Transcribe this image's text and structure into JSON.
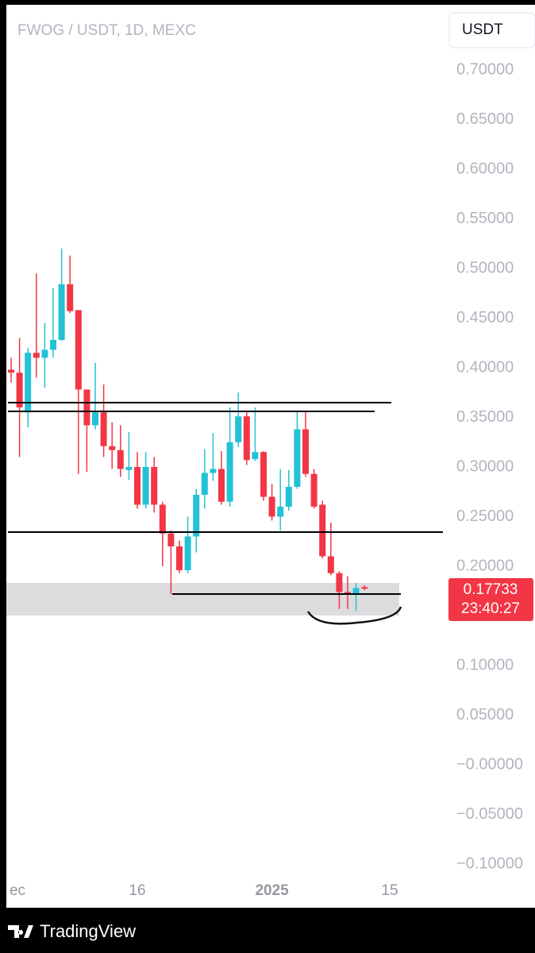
{
  "chart_data": {
    "type": "candlestick",
    "title": "FWOG / USDT, 1D, MEXC",
    "currency": "USDT",
    "categories": [
      "ec",
      null,
      null,
      null,
      null,
      null,
      null,
      null,
      null,
      null,
      null,
      null,
      null,
      null,
      null,
      "16",
      null,
      null,
      null,
      null,
      null,
      null,
      null,
      null,
      null,
      null,
      null,
      null,
      null,
      null,
      null,
      "2025",
      null,
      null,
      null,
      null,
      null,
      null,
      null,
      null,
      null,
      null,
      null,
      null,
      null,
      "15"
    ],
    "open": [
      0.398,
      0.395,
      0.355,
      0.415,
      0.41,
      0.418,
      0.428,
      0.484,
      0.458,
      0.378,
      0.342,
      0.355,
      0.321,
      0.317,
      0.297,
      0.3,
      0.262,
      0.3,
      0.262,
      0.233,
      0.22,
      0.196,
      0.23,
      0.272,
      0.294,
      0.298,
      0.265,
      0.325,
      0.351,
      0.308,
      0.315,
      0.27,
      0.25,
      0.26,
      0.28,
      0.338,
      0.293,
      0.262,
      0.21,
      0.193,
      0.174,
      0.172,
      0.179,
      null,
      null,
      null
    ],
    "high": [
      0.41,
      0.43,
      0.42,
      0.495,
      0.445,
      0.48,
      0.52,
      0.513,
      0.458,
      0.378,
      0.405,
      0.383,
      0.345,
      0.342,
      0.335,
      0.315,
      0.315,
      0.31,
      0.265,
      0.236,
      0.226,
      0.25,
      0.278,
      0.318,
      0.334,
      0.316,
      0.36,
      0.375,
      0.355,
      0.36,
      0.316,
      0.283,
      0.298,
      0.297,
      0.356,
      0.356,
      0.298,
      0.266,
      0.244,
      0.195,
      0.19,
      0.183,
      0.181,
      null,
      null,
      null
    ],
    "low": [
      0.385,
      0.31,
      0.34,
      0.39,
      0.38,
      0.41,
      0.427,
      0.455,
      0.293,
      0.295,
      0.338,
      0.31,
      0.298,
      0.29,
      0.287,
      0.258,
      0.258,
      0.254,
      0.2,
      0.172,
      0.193,
      0.193,
      0.214,
      0.258,
      0.286,
      0.262,
      0.26,
      0.32,
      0.302,
      0.306,
      0.266,
      0.246,
      0.236,
      0.256,
      0.278,
      0.29,
      0.258,
      0.208,
      0.191,
      0.157,
      0.157,
      0.155,
      0.176,
      null,
      null,
      null
    ],
    "close": [
      0.395,
      0.36,
      0.415,
      0.41,
      0.418,
      0.428,
      0.484,
      0.457,
      0.378,
      0.342,
      0.355,
      0.321,
      0.317,
      0.298,
      0.3,
      0.262,
      0.3,
      0.262,
      0.233,
      0.22,
      0.196,
      0.23,
      0.272,
      0.294,
      0.298,
      0.265,
      0.325,
      0.351,
      0.307,
      0.315,
      0.27,
      0.25,
      0.26,
      0.28,
      0.338,
      0.293,
      0.26,
      0.21,
      0.193,
      0.174,
      0.173,
      0.178,
      0.17733,
      null,
      null,
      null
    ],
    "up_color": "#22c1d6",
    "down_color": "#f23645",
    "ylim": [
      -0.116,
      0.7704
    ],
    "yticks": [
      {
        "value": 0.7,
        "label": "0.70000"
      },
      {
        "value": 0.65,
        "label": "0.65000"
      },
      {
        "value": 0.6,
        "label": "0.60000"
      },
      {
        "value": 0.55,
        "label": "0.55000"
      },
      {
        "value": 0.5,
        "label": "0.50000"
      },
      {
        "value": 0.45,
        "label": "0.45000"
      },
      {
        "value": 0.4,
        "label": "0.40000"
      },
      {
        "value": 0.35,
        "label": "0.35000"
      },
      {
        "value": 0.3,
        "label": "0.30000"
      },
      {
        "value": 0.25,
        "label": "0.25000"
      },
      {
        "value": 0.2,
        "label": "0.20000"
      },
      {
        "value": 0.1,
        "label": "0.10000"
      },
      {
        "value": 0.05,
        "label": "0.05000"
      },
      {
        "value": 0,
        "label": "−0.00000"
      },
      {
        "value": -0.05,
        "label": "−0.05000"
      },
      {
        "value": -0.1,
        "label": "−0.10000"
      }
    ],
    "price_label": "0.17733",
    "countdown": "23:40:27",
    "brand": "TradingView"
  }
}
